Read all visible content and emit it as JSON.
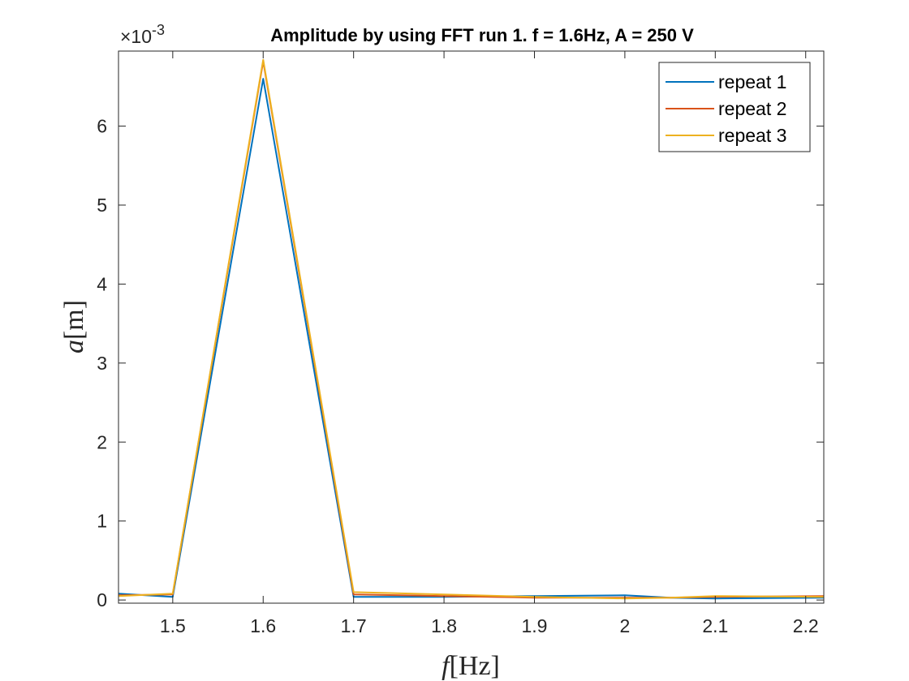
{
  "chart_data": {
    "type": "line",
    "title": "Amplitude by using FFT run 1. f = 1.6Hz, A = 250 V",
    "xlabel_italic": "f",
    "xlabel_unit": "[Hz]",
    "ylabel_italic": "a",
    "ylabel_unit": "[m]",
    "y_exponent_base": "×10",
    "y_exponent_power": "-3",
    "xlim": [
      1.44,
      2.22
    ],
    "ylim": [
      -4e-05,
      0.00695
    ],
    "xticks": [
      1.5,
      1.6,
      1.7,
      1.8,
      1.9,
      2.0,
      2.1,
      2.2
    ],
    "xtick_labels": [
      "1.5",
      "1.6",
      "1.7",
      "1.8",
      "1.9",
      "2",
      "2.1",
      "2.2"
    ],
    "yticks": [
      0,
      0.001,
      0.002,
      0.003,
      0.004,
      0.005,
      0.006
    ],
    "ytick_labels": [
      "0",
      "1",
      "2",
      "3",
      "4",
      "5",
      "6"
    ],
    "grid": false,
    "legend_position": "top-right",
    "x": [
      1.44,
      1.5,
      1.6,
      1.7,
      1.8,
      1.9,
      2.0,
      2.05,
      2.1,
      2.22
    ],
    "series": [
      {
        "name": "repeat 1",
        "color": "#0072BD",
        "values": [
          8e-05,
          4e-05,
          0.0066,
          4e-05,
          4e-05,
          5e-05,
          6e-05,
          3e-05,
          2e-05,
          3e-05
        ]
      },
      {
        "name": "repeat 2",
        "color": "#D95319",
        "values": [
          6e-05,
          7e-05,
          0.00682,
          7e-05,
          5e-05,
          3e-05,
          3e-05,
          3e-05,
          4e-05,
          5e-05
        ]
      },
      {
        "name": "repeat 3",
        "color": "#EDB120",
        "values": [
          5e-05,
          8e-05,
          0.00684,
          0.0001,
          7e-05,
          4e-05,
          2e-05,
          3e-05,
          5e-05,
          4e-05
        ]
      }
    ]
  }
}
